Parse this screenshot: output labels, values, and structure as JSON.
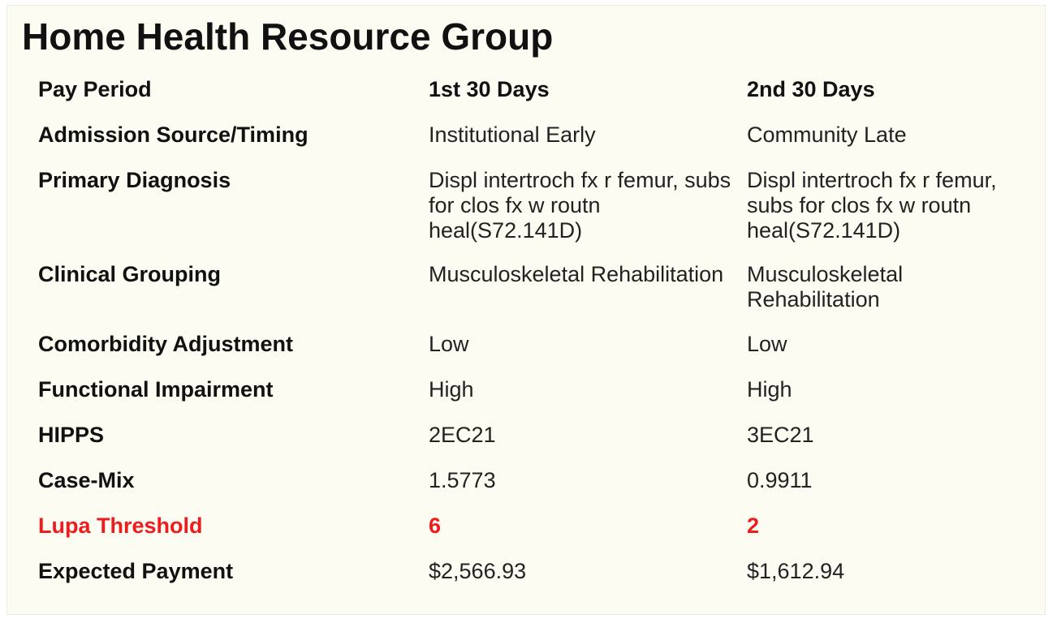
{
  "title": "Home Health Resource Group",
  "table": {
    "header": {
      "label": "Pay Period",
      "col1": "1st 30 Days",
      "col2": "2nd 30 Days"
    },
    "rows": [
      {
        "label": "Admission Source/Timing",
        "col1": "Institutional Early",
        "col2": "Community Late"
      },
      {
        "label": "Primary Diagnosis",
        "col1": "Displ intertroch fx r femur, subs for clos fx w routn heal(S72.141D)",
        "col2": "Displ intertroch fx r femur, subs for clos fx w routn heal(S72.141D)"
      },
      {
        "label": "Clinical Grouping",
        "col1": "Musculoskeletal Rehabilitation",
        "col2": "Musculoskeletal Rehabilitation"
      },
      {
        "label": "Comorbidity Adjustment",
        "col1": "Low",
        "col2": "Low"
      },
      {
        "label": "Functional Impairment",
        "col1": "High",
        "col2": "High"
      },
      {
        "label": "HIPPS",
        "col1": "2EC21",
        "col2": "3EC21"
      },
      {
        "label": "Case-Mix",
        "col1": "1.5773",
        "col2": "0.9911"
      },
      {
        "label": "Lupa Threshold",
        "col1": "6",
        "col2": "2"
      },
      {
        "label": "Expected Payment",
        "col1": "$2,566.93",
        "col2": "$1,612.94"
      }
    ]
  },
  "colors": {
    "background": "#fdfcf2",
    "text": "#111111",
    "highlight": "#ee1c1c"
  }
}
